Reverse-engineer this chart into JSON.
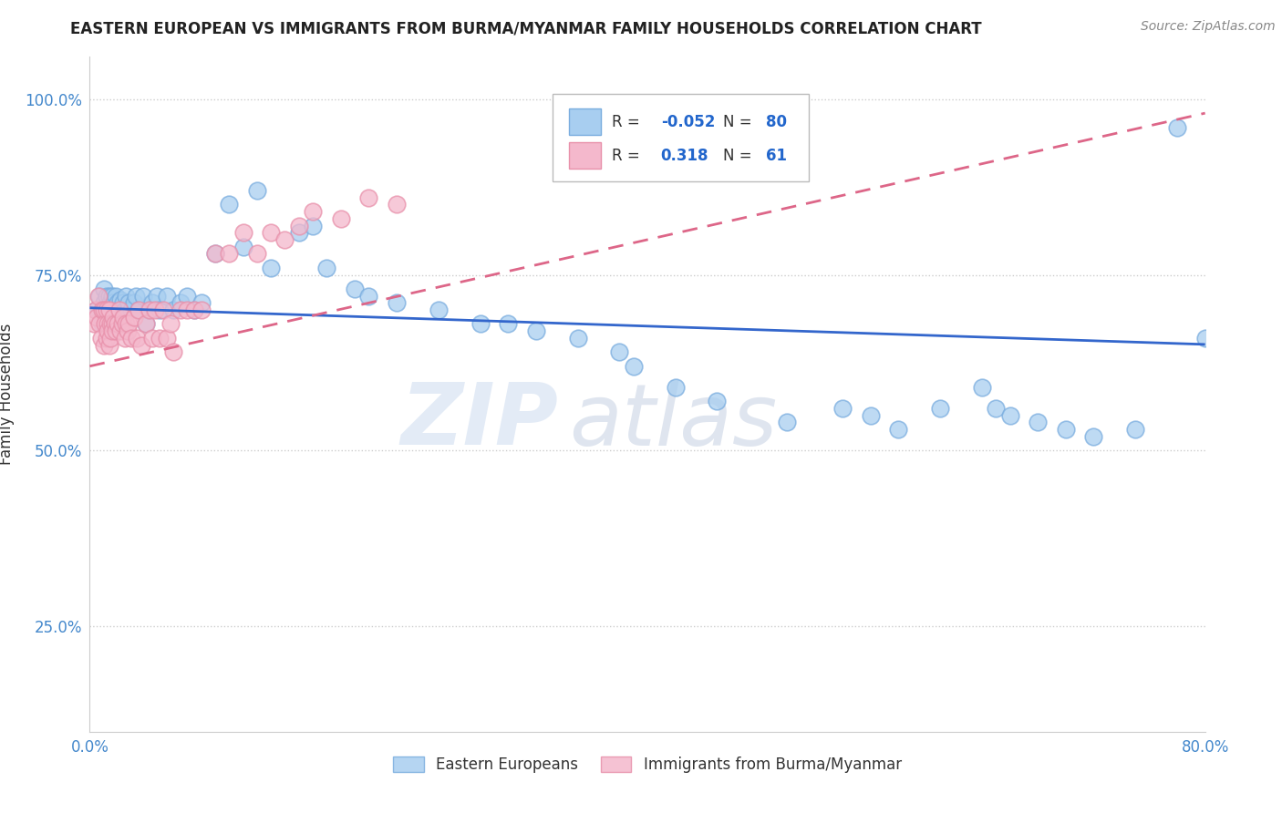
{
  "title": "EASTERN EUROPEAN VS IMMIGRANTS FROM BURMA/MYANMAR FAMILY HOUSEHOLDS CORRELATION CHART",
  "source": "Source: ZipAtlas.com",
  "ylabel": "Family Households",
  "xlabel": "",
  "xlim": [
    0.0,
    0.8
  ],
  "ylim": [
    0.1,
    1.06
  ],
  "xticks": [
    0.0,
    0.1,
    0.2,
    0.3,
    0.4,
    0.5,
    0.6,
    0.7,
    0.8
  ],
  "xticklabels": [
    "0.0%",
    "",
    "",
    "",
    "",
    "",
    "",
    "",
    "80.0%"
  ],
  "yticks": [
    0.25,
    0.5,
    0.75,
    1.0
  ],
  "yticklabels": [
    "25.0%",
    "50.0%",
    "75.0%",
    "100.0%"
  ],
  "blue_color": "#A8CEF0",
  "pink_color": "#F4B8CC",
  "blue_line_color": "#3366CC",
  "pink_line_color": "#DD6688",
  "grid_color": "#CCCCCC",
  "background_color": "#FFFFFF",
  "watermark_zip": "ZIP",
  "watermark_atlas": "atlas",
  "blue_points_x": [
    0.005,
    0.007,
    0.008,
    0.009,
    0.01,
    0.01,
    0.011,
    0.012,
    0.012,
    0.013,
    0.014,
    0.014,
    0.015,
    0.015,
    0.016,
    0.016,
    0.017,
    0.018,
    0.018,
    0.019,
    0.02,
    0.02,
    0.021,
    0.022,
    0.023,
    0.024,
    0.025,
    0.026,
    0.027,
    0.028,
    0.03,
    0.032,
    0.033,
    0.035,
    0.038,
    0.04,
    0.042,
    0.045,
    0.048,
    0.05,
    0.055,
    0.06,
    0.065,
    0.07,
    0.075,
    0.08,
    0.09,
    0.1,
    0.11,
    0.12,
    0.13,
    0.15,
    0.16,
    0.17,
    0.19,
    0.2,
    0.22,
    0.25,
    0.28,
    0.3,
    0.32,
    0.35,
    0.38,
    0.39,
    0.42,
    0.45,
    0.5,
    0.54,
    0.56,
    0.58,
    0.61,
    0.64,
    0.65,
    0.66,
    0.68,
    0.7,
    0.72,
    0.75,
    0.78,
    0.8
  ],
  "blue_points_y": [
    0.7,
    0.72,
    0.69,
    0.68,
    0.71,
    0.73,
    0.68,
    0.7,
    0.72,
    0.69,
    0.7,
    0.72,
    0.68,
    0.71,
    0.7,
    0.72,
    0.71,
    0.68,
    0.7,
    0.72,
    0.69,
    0.71,
    0.7,
    0.715,
    0.69,
    0.71,
    0.7,
    0.72,
    0.7,
    0.71,
    0.7,
    0.71,
    0.72,
    0.7,
    0.72,
    0.68,
    0.7,
    0.71,
    0.72,
    0.7,
    0.72,
    0.7,
    0.71,
    0.72,
    0.7,
    0.71,
    0.78,
    0.85,
    0.79,
    0.87,
    0.76,
    0.81,
    0.82,
    0.76,
    0.73,
    0.72,
    0.71,
    0.7,
    0.68,
    0.68,
    0.67,
    0.66,
    0.64,
    0.62,
    0.59,
    0.57,
    0.54,
    0.56,
    0.55,
    0.53,
    0.56,
    0.59,
    0.56,
    0.55,
    0.54,
    0.53,
    0.52,
    0.53,
    0.96,
    0.66
  ],
  "pink_points_x": [
    0.003,
    0.004,
    0.005,
    0.006,
    0.007,
    0.008,
    0.009,
    0.01,
    0.01,
    0.011,
    0.012,
    0.012,
    0.013,
    0.013,
    0.014,
    0.014,
    0.015,
    0.015,
    0.016,
    0.016,
    0.017,
    0.018,
    0.019,
    0.02,
    0.021,
    0.022,
    0.023,
    0.024,
    0.025,
    0.026,
    0.027,
    0.028,
    0.03,
    0.032,
    0.034,
    0.035,
    0.037,
    0.04,
    0.043,
    0.045,
    0.047,
    0.05,
    0.053,
    0.055,
    0.058,
    0.06,
    0.065,
    0.07,
    0.075,
    0.08,
    0.09,
    0.1,
    0.11,
    0.12,
    0.13,
    0.14,
    0.15,
    0.16,
    0.18,
    0.2,
    0.22
  ],
  "pink_points_y": [
    0.68,
    0.7,
    0.69,
    0.72,
    0.68,
    0.66,
    0.7,
    0.65,
    0.7,
    0.68,
    0.66,
    0.7,
    0.68,
    0.67,
    0.65,
    0.7,
    0.68,
    0.66,
    0.68,
    0.67,
    0.69,
    0.68,
    0.67,
    0.68,
    0.7,
    0.67,
    0.68,
    0.69,
    0.66,
    0.68,
    0.67,
    0.68,
    0.66,
    0.69,
    0.66,
    0.7,
    0.65,
    0.68,
    0.7,
    0.66,
    0.7,
    0.66,
    0.7,
    0.66,
    0.68,
    0.64,
    0.7,
    0.7,
    0.7,
    0.7,
    0.78,
    0.78,
    0.81,
    0.78,
    0.81,
    0.8,
    0.82,
    0.84,
    0.83,
    0.86,
    0.85
  ],
  "blue_trend_x": [
    0.0,
    0.8
  ],
  "blue_trend_y": [
    0.703,
    0.651
  ],
  "pink_trend_x": [
    0.0,
    0.8
  ],
  "pink_trend_y": [
    0.62,
    0.98
  ]
}
